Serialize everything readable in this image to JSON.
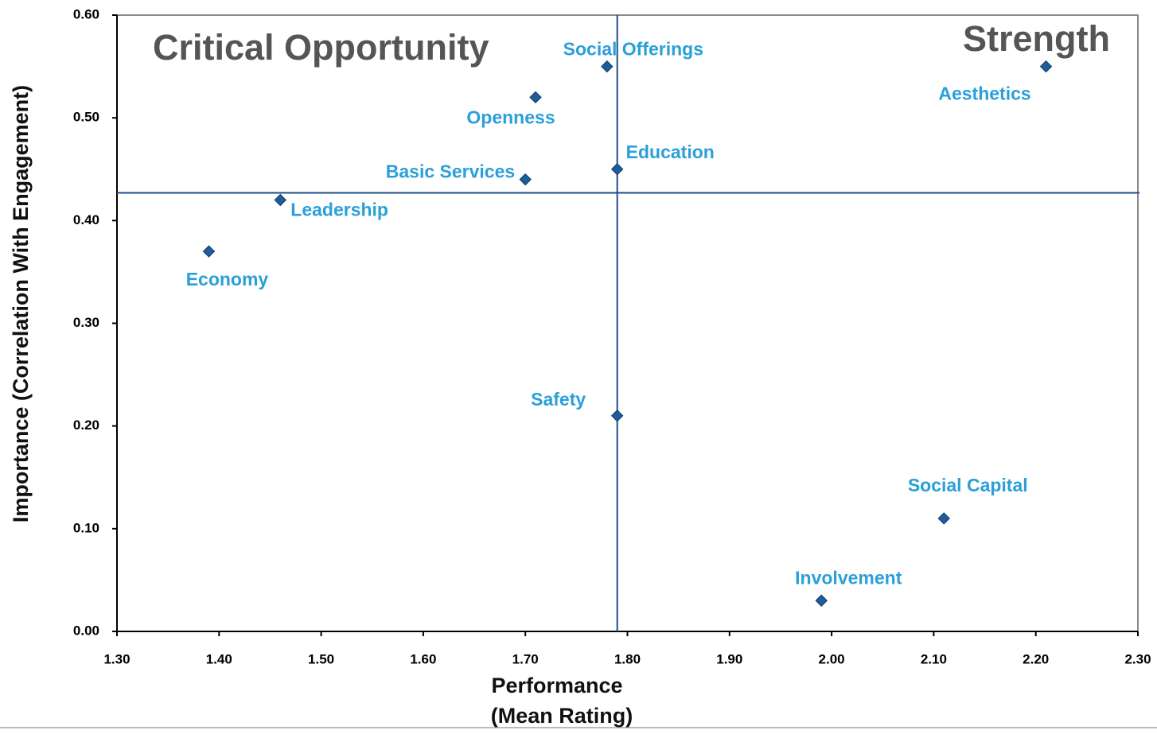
{
  "chart_data": {
    "type": "scatter",
    "x_label": [
      "Performance",
      "(Mean Rating)"
    ],
    "y_label": "Importance (Correlation With Engagement)",
    "annotations": [
      "Critical Opportunity",
      "Strength"
    ],
    "labels": [
      "Social Offerings",
      "Openness",
      "Aesthetics",
      "Education",
      "Basic Services",
      "Leadership",
      "Economy",
      "Safety",
      "Social Capital",
      "Involvement"
    ],
    "x": [
      1.78,
      1.71,
      2.21,
      1.79,
      1.7,
      1.46,
      1.39,
      1.79,
      2.11,
      1.99
    ],
    "values": [
      0.55,
      0.52,
      0.55,
      0.45,
      0.44,
      0.42,
      0.37,
      0.21,
      0.11,
      0.03
    ],
    "color": "#1f5c9c",
    "label_color": "#2a9fd9",
    "x_ref": 1.79,
    "y_ref": 0.427,
    "ref_color": "#1a4f8a",
    "xlim": [
      1.3,
      2.3
    ],
    "ylim": [
      0.0,
      0.6
    ],
    "xticks": [
      {
        "value": 1.3,
        "label": "1.30"
      },
      {
        "value": 1.4,
        "label": "1.40"
      },
      {
        "value": 1.5,
        "label": "1.50"
      },
      {
        "value": 1.6,
        "label": "1.60"
      },
      {
        "value": 1.7,
        "label": "1.70"
      },
      {
        "value": 1.8,
        "label": "1.80"
      },
      {
        "value": 1.9,
        "label": "1.90"
      },
      {
        "value": 2.0,
        "label": "2.00"
      },
      {
        "value": 2.1,
        "label": "2.10"
      },
      {
        "value": 2.2,
        "label": "2.20"
      },
      {
        "value": 2.3,
        "label": "2.30"
      }
    ],
    "yticks": [
      {
        "value": 0,
        "label": "0.00"
      },
      {
        "value": 0.1,
        "label": "0.10"
      },
      {
        "value": 0.2,
        "label": "0.20"
      },
      {
        "value": 0.3,
        "label": "0.30"
      },
      {
        "value": 0.4,
        "label": "0.40"
      },
      {
        "value": 0.5,
        "label": "0.50"
      },
      {
        "value": 0.6,
        "label": "0.60"
      }
    ]
  }
}
